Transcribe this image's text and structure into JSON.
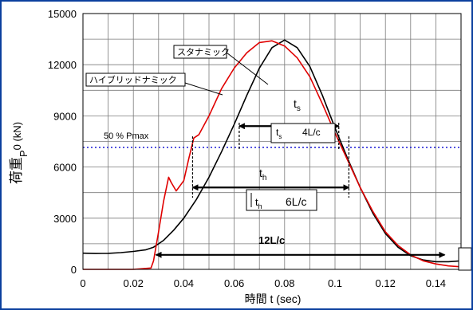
{
  "chart_data": {
    "type": "line",
    "title": "",
    "xlabel": "時間 t (sec)",
    "ylabel": "荷重 P0 (kN)",
    "ylabel_parts": {
      "main": "荷重",
      "sub_left": "P",
      "sub_right": "0 (kN)"
    },
    "xlim": [
      0,
      0.15
    ],
    "ylim": [
      0,
      15000
    ],
    "xticks": [
      0,
      0.02,
      0.04,
      0.06,
      0.08,
      0.1,
      0.12,
      0.14
    ],
    "xtick_labels": [
      "0",
      "0.02",
      "0.04",
      "0.06",
      "0.08",
      "0.1",
      "0.12",
      "0.14"
    ],
    "yticks": [
      0,
      3000,
      6000,
      9000,
      12000,
      15000
    ],
    "ytick_labels": [
      "0",
      "3000",
      "6000",
      "9000",
      "12000",
      "15000"
    ],
    "grid": true,
    "series": [
      {
        "name": "スタナミック",
        "color": "#000000",
        "x": [
          0,
          0.005,
          0.01,
          0.015,
          0.02,
          0.025,
          0.028,
          0.032,
          0.036,
          0.04,
          0.045,
          0.05,
          0.055,
          0.06,
          0.065,
          0.07,
          0.075,
          0.08,
          0.085,
          0.09,
          0.095,
          0.1,
          0.105,
          0.11,
          0.115,
          0.12,
          0.125,
          0.13,
          0.135,
          0.14,
          0.145,
          0.15
        ],
        "y": [
          950,
          930,
          940,
          980,
          1050,
          1150,
          1300,
          1700,
          2300,
          3000,
          4100,
          5400,
          6900,
          8500,
          10200,
          11800,
          13000,
          13450,
          13000,
          11900,
          10200,
          8300,
          6500,
          4800,
          3300,
          2100,
          1300,
          800,
          550,
          450,
          450,
          500
        ]
      },
      {
        "name": "ハイブリッドナミック",
        "color": "#e00000",
        "x": [
          0,
          0.01,
          0.02,
          0.027,
          0.028,
          0.03,
          0.032,
          0.034,
          0.035,
          0.037,
          0.04,
          0.042,
          0.044,
          0.046,
          0.05,
          0.055,
          0.06,
          0.065,
          0.07,
          0.075,
          0.08,
          0.085,
          0.09,
          0.095,
          0.1,
          0.105,
          0.11,
          0.115,
          0.12,
          0.125,
          0.13,
          0.135,
          0.14,
          0.145,
          0.15
        ],
        "y": [
          0,
          0,
          0,
          80,
          500,
          2200,
          4000,
          5400,
          5100,
          4600,
          5200,
          6500,
          7700,
          7900,
          9000,
          10600,
          11800,
          12700,
          13300,
          13400,
          13100,
          12400,
          11300,
          9700,
          8000,
          6400,
          4800,
          3400,
          2200,
          1400,
          850,
          500,
          320,
          200,
          150
        ]
      }
    ],
    "reference_line": {
      "label": "50 %   Pmax",
      "y": 7150,
      "color": "#1a1ad6"
    },
    "annotations": {
      "ts_label": "t",
      "ts_sub": "s",
      "ts_box_main": "t",
      "ts_box_sub": "s",
      "ts_box_value": "4L/c",
      "th_label": "t",
      "th_sub": "h",
      "th_box_main": "t",
      "th_box_sub": "h",
      "th_box_value": "6L/c",
      "l12_label": "12L/c"
    }
  }
}
